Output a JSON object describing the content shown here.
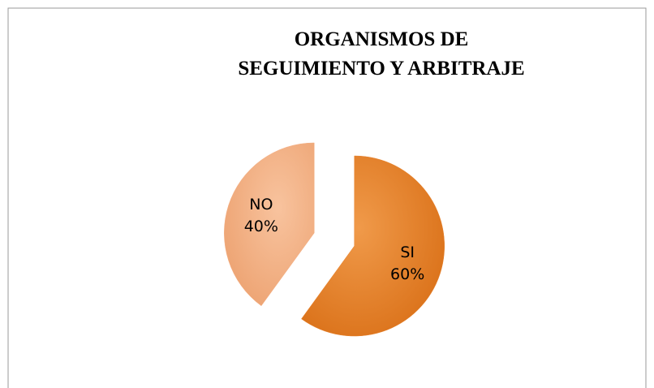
{
  "chart_data": {
    "type": "pie",
    "title": [
      "ORGANISMOS DE",
      "SEGUIMIENTO Y ARBITRAJE"
    ],
    "categories": [
      "SI",
      "NO"
    ],
    "values": [
      60,
      40
    ],
    "value_labels": [
      "60%",
      "40%"
    ],
    "colors": [
      "#e8822c",
      "#f4b085"
    ],
    "exploded": true
  }
}
